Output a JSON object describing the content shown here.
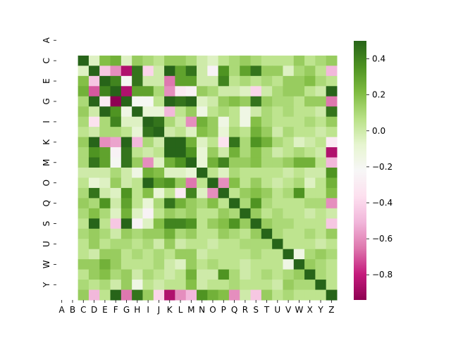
{
  "chart_data": {
    "type": "heatmap",
    "title": "",
    "xlabel": "",
    "ylabel": "",
    "x_labels": [
      "A",
      "B",
      "C",
      "D",
      "E",
      "F",
      "G",
      "H",
      "I",
      "J",
      "K",
      "L",
      "M",
      "N",
      "O",
      "P",
      "Q",
      "R",
      "S",
      "T",
      "U",
      "V",
      "W",
      "X",
      "Y",
      "Z"
    ],
    "y_tick_labels": [
      "A",
      "C",
      "E",
      "G",
      "I",
      "K",
      "M",
      "O",
      "Q",
      "S",
      "U",
      "W",
      "Y"
    ],
    "rows": [
      "A",
      "B",
      "C",
      "D",
      "E",
      "F",
      "G",
      "H",
      "I",
      "J",
      "K",
      "L",
      "M",
      "N",
      "O",
      "P",
      "Q",
      "R",
      "S",
      "T",
      "U",
      "V",
      "W",
      "X",
      "Y",
      "Z"
    ],
    "colormap": "PiYG",
    "vmin": -0.94,
    "vmax": 0.5,
    "colorbar_ticks": [
      0.4,
      0.2,
      0.0,
      -0.2,
      -0.4,
      -0.6,
      -0.8
    ],
    "colorbar_tick_labels": [
      "0.4",
      "0.2",
      "0.0",
      "−0.2",
      "−0.4",
      "−0.6",
      "−0.8"
    ],
    "missing_rows": [
      "A",
      "B"
    ],
    "values": [
      [
        null,
        null,
        null,
        null,
        null,
        null,
        null,
        null,
        null,
        null,
        null,
        null,
        null,
        null,
        null,
        null,
        null,
        null,
        null,
        null,
        null,
        null,
        null,
        null,
        null,
        null
      ],
      [
        null,
        null,
        null,
        null,
        null,
        null,
        null,
        null,
        null,
        null,
        null,
        null,
        null,
        null,
        null,
        null,
        null,
        null,
        null,
        null,
        null,
        null,
        null,
        null,
        null,
        null
      ],
      [
        null,
        null,
        0.5,
        -0.05,
        0.2,
        0.25,
        -0.05,
        0.15,
        0.1,
        0.05,
        0.15,
        0.15,
        0.1,
        0.0,
        -0.05,
        0.05,
        0.1,
        0.15,
        0.1,
        0.05,
        0.05,
        0.05,
        0.15,
        0.05,
        0.1,
        0.15
      ],
      [
        null,
        null,
        -0.05,
        0.5,
        -0.45,
        -0.6,
        -0.85,
        0.45,
        -0.4,
        0.0,
        0.5,
        0.3,
        0.45,
        0.0,
        -0.25,
        0.35,
        0.1,
        0.3,
        0.45,
        0.15,
        0.15,
        -0.05,
        0.1,
        0.15,
        0.05,
        -0.5
      ],
      [
        null,
        null,
        0.2,
        -0.45,
        0.5,
        0.4,
        -0.2,
        0.45,
        0.0,
        0.0,
        -0.65,
        0.3,
        0.3,
        0.0,
        0.0,
        0.4,
        0.05,
        0.1,
        0.05,
        0.1,
        0.05,
        0.15,
        0.15,
        0.2,
        0.1,
        0.05
      ],
      [
        null,
        null,
        0.25,
        -0.7,
        0.4,
        0.5,
        -0.85,
        0.3,
        0.3,
        0.1,
        -0.6,
        -0.3,
        -0.25,
        0.15,
        0.1,
        0.0,
        0.0,
        -0.05,
        -0.4,
        0.0,
        0.1,
        0.15,
        0.15,
        0.05,
        0.0,
        0.5
      ],
      [
        null,
        null,
        0.1,
        0.5,
        -0.3,
        -0.94,
        0.5,
        -0.2,
        -0.2,
        0.05,
        0.5,
        0.45,
        0.5,
        -0.05,
        0.0,
        0.15,
        0.2,
        0.15,
        0.45,
        0.15,
        0.1,
        0.1,
        0.05,
        0.15,
        0.15,
        -0.65
      ],
      [
        null,
        null,
        0.15,
        0.0,
        0.5,
        0.35,
        -0.15,
        0.5,
        -0.1,
        -0.1,
        -0.5,
        0.05,
        0.15,
        -0.15,
        0.05,
        0.1,
        0.05,
        -0.15,
        0.0,
        0.1,
        0.05,
        0.1,
        0.05,
        0.05,
        0.0,
        0.45
      ],
      [
        null,
        null,
        0.1,
        -0.35,
        0.1,
        0.4,
        -0.05,
        -0.05,
        0.5,
        0.45,
        0.1,
        0.0,
        -0.6,
        0.25,
        0.15,
        -0.15,
        0.05,
        -0.15,
        0.2,
        0.1,
        0.05,
        0.05,
        0.05,
        0.1,
        0.05,
        0.15
      ],
      [
        null,
        null,
        0.05,
        0.0,
        0.1,
        0.1,
        0.05,
        -0.1,
        0.45,
        0.5,
        0.0,
        0.05,
        -0.05,
        0.2,
        0.15,
        -0.1,
        0.1,
        0.05,
        0.25,
        0.15,
        0.0,
        0.1,
        0.05,
        0.05,
        0.0,
        0.05
      ],
      [
        null,
        null,
        0.15,
        0.5,
        -0.6,
        -0.55,
        0.5,
        -0.5,
        0.1,
        0.0,
        0.5,
        0.5,
        0.25,
        -0.05,
        0.05,
        -0.35,
        0.45,
        0.1,
        0.35,
        0.25,
        0.1,
        0.05,
        -0.05,
        0.0,
        0.05,
        -0.3
      ],
      [
        null,
        null,
        0.1,
        0.35,
        0.3,
        -0.25,
        0.45,
        0.05,
        0.0,
        0.05,
        0.5,
        0.5,
        0.35,
        -0.1,
        0.15,
        0.0,
        0.25,
        0.1,
        0.2,
        0.1,
        0.0,
        0.05,
        0.1,
        0.05,
        0.0,
        -0.85
      ],
      [
        null,
        null,
        0.1,
        0.45,
        0.3,
        -0.2,
        0.45,
        0.15,
        -0.6,
        -0.05,
        0.25,
        0.35,
        0.5,
        -0.1,
        0.25,
        0.4,
        0.15,
        0.15,
        0.2,
        0.1,
        0.1,
        0.15,
        0.25,
        0.25,
        0.05,
        -0.5
      ],
      [
        null,
        null,
        0.0,
        0.0,
        0.0,
        0.1,
        0.0,
        -0.15,
        0.25,
        0.2,
        -0.05,
        -0.05,
        -0.1,
        0.5,
        0.05,
        -0.05,
        0.1,
        0.05,
        0.05,
        0.05,
        0.05,
        0.0,
        0.05,
        0.0,
        0.0,
        0.35
      ],
      [
        null,
        null,
        0.05,
        -0.1,
        -0.05,
        0.15,
        0.0,
        0.05,
        0.5,
        0.3,
        0.35,
        0.15,
        -0.65,
        0.05,
        0.5,
        -0.6,
        0.2,
        0.05,
        0.15,
        0.05,
        0.0,
        0.05,
        0.1,
        -0.05,
        0.05,
        0.25
      ],
      [
        null,
        null,
        0.1,
        0.45,
        0.0,
        -0.05,
        0.35,
        0.05,
        0.2,
        -0.1,
        0.05,
        -0.3,
        0.4,
        -0.05,
        -0.6,
        0.5,
        0.05,
        0.15,
        0.2,
        0.15,
        0.05,
        0.1,
        0.35,
        0.05,
        0.05,
        0.2
      ],
      [
        null,
        null,
        0.15,
        0.1,
        0.35,
        0.0,
        0.3,
        0.05,
        -0.1,
        0.1,
        0.45,
        0.25,
        0.15,
        0.1,
        0.2,
        0.05,
        0.5,
        0.1,
        0.35,
        0.1,
        0.05,
        0.05,
        0.05,
        0.1,
        0.1,
        -0.6
      ],
      [
        null,
        null,
        0.1,
        0.2,
        0.1,
        -0.05,
        0.25,
        -0.05,
        -0.25,
        0.05,
        0.15,
        0.1,
        0.15,
        0.05,
        0.05,
        0.15,
        0.1,
        0.5,
        0.15,
        0.05,
        0.1,
        0.05,
        0.05,
        0.0,
        0.05,
        0.0
      ],
      [
        null,
        null,
        0.05,
        0.5,
        0.05,
        -0.45,
        0.5,
        -0.25,
        -0.05,
        0.2,
        0.4,
        0.4,
        0.35,
        0.05,
        0.15,
        0.2,
        0.35,
        0.15,
        0.5,
        0.15,
        0.1,
        0.1,
        0.05,
        0.05,
        0.05,
        -0.45
      ],
      [
        null,
        null,
        0.1,
        0.15,
        0.1,
        0.0,
        0.15,
        0.1,
        0.15,
        0.15,
        0.25,
        0.1,
        0.15,
        0.05,
        0.05,
        0.15,
        0.1,
        0.05,
        0.15,
        0.5,
        0.1,
        0.05,
        0.05,
        0.1,
        0.05,
        0.15
      ],
      [
        null,
        null,
        0.05,
        0.15,
        0.05,
        0.1,
        0.1,
        0.05,
        0.1,
        0.0,
        0.15,
        0.0,
        0.05,
        0.05,
        0.0,
        0.05,
        0.05,
        0.1,
        0.1,
        0.1,
        0.5,
        0.05,
        0.05,
        0.05,
        0.0,
        0.05
      ],
      [
        null,
        null,
        0.05,
        0.0,
        0.15,
        0.15,
        0.05,
        0.1,
        0.05,
        0.1,
        0.05,
        0.15,
        0.15,
        0.0,
        0.05,
        0.05,
        0.05,
        0.05,
        0.1,
        0.05,
        0.05,
        0.5,
        -0.15,
        0.1,
        0.15,
        0.1
      ],
      [
        null,
        null,
        0.15,
        0.15,
        0.25,
        0.15,
        0.05,
        0.05,
        0.05,
        0.1,
        0.0,
        -0.05,
        0.15,
        0.05,
        0.1,
        0.05,
        0.05,
        0.0,
        0.05,
        0.05,
        0.05,
        -0.15,
        0.5,
        0.15,
        0.1,
        0.05
      ],
      [
        null,
        null,
        0.05,
        0.15,
        0.2,
        0.1,
        0.15,
        0.0,
        0.1,
        0.05,
        0.0,
        0.05,
        0.25,
        0.0,
        0.0,
        0.35,
        0.1,
        0.0,
        0.05,
        0.1,
        0.05,
        0.1,
        0.15,
        0.5,
        0.1,
        0.05
      ],
      [
        null,
        null,
        0.1,
        0.05,
        0.1,
        0.0,
        0.15,
        -0.15,
        0.05,
        0.0,
        0.05,
        0.05,
        0.2,
        0.0,
        0.05,
        0.05,
        0.1,
        0.05,
        0.05,
        0.05,
        0.0,
        0.15,
        0.1,
        0.1,
        0.5,
        0.05
      ],
      [
        null,
        null,
        0.15,
        -0.5,
        0.05,
        0.5,
        -0.65,
        0.45,
        0.15,
        -0.4,
        -0.85,
        -0.6,
        -0.5,
        0.35,
        0.25,
        0.2,
        -0.6,
        0.0,
        -0.45,
        0.15,
        0.05,
        0.1,
        0.05,
        0.05,
        0.05,
        0.5
      ]
    ]
  }
}
